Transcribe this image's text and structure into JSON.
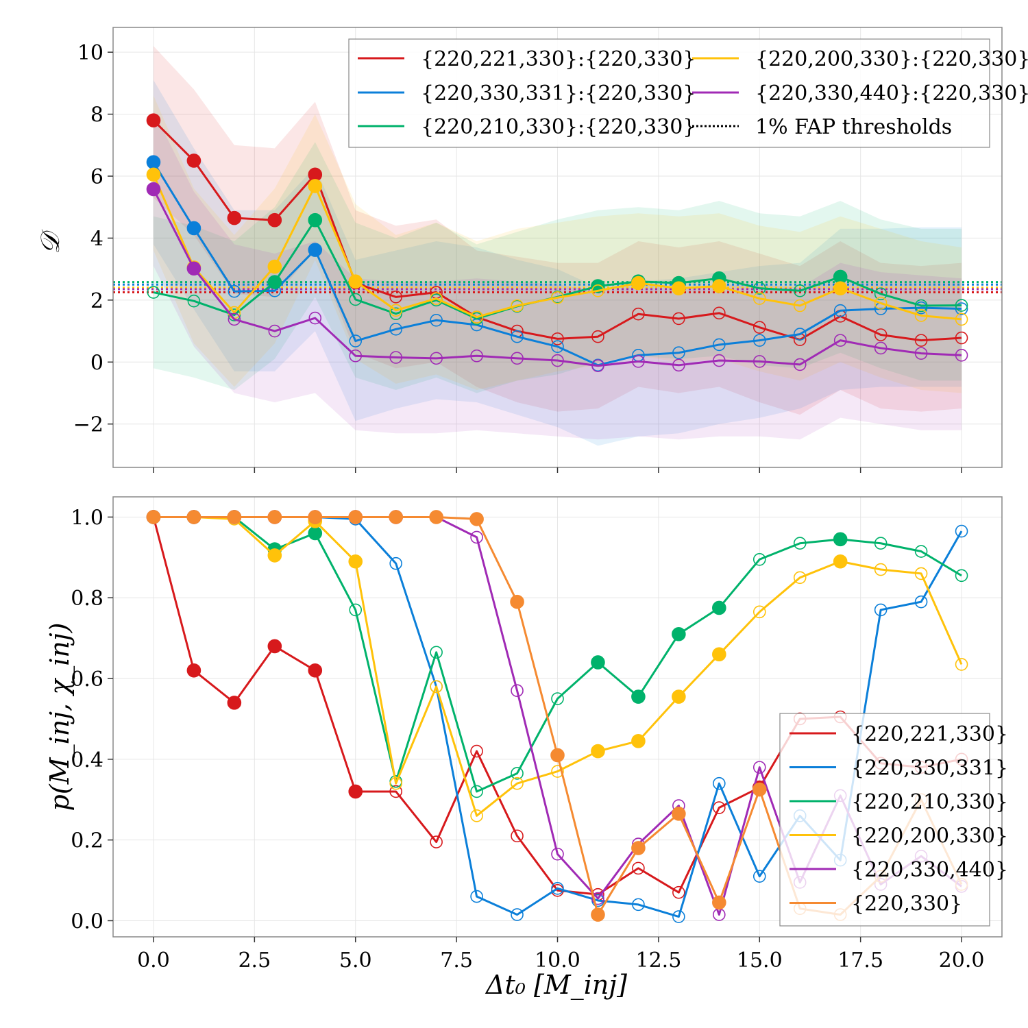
{
  "chart_data": [
    {
      "type": "line",
      "panel": "top",
      "ylabel": "𝒟",
      "xlabel": "",
      "xlim": [
        -1,
        21
      ],
      "ylim": [
        -3.4,
        10.8
      ],
      "x_ticks": [
        0.0,
        2.5,
        5.0,
        7.5,
        10.0,
        12.5,
        15.0,
        17.5,
        20.0
      ],
      "y_ticks": [
        -2,
        0,
        2,
        4,
        6,
        8,
        10
      ],
      "y_tick_labels": [
        "−2",
        "0",
        "2",
        "4",
        "6",
        "8",
        "10"
      ],
      "x_tick_labels_visible": false,
      "grid": true,
      "legend_placement": "top-right",
      "legend_columns": 2,
      "legend_entries": [
        "{220,221,330}:{220,330}",
        "{220,330,331}:{220,330}",
        "{220,210,330}:{220,330}",
        "{220,200,330}:{220,330}",
        "{220,330,440}:{220,330}",
        "1% FAP thresholds"
      ],
      "x": [
        0,
        1,
        2,
        3,
        4,
        5,
        6,
        7,
        8,
        9,
        10,
        11,
        12,
        13,
        14,
        15,
        16,
        17,
        18,
        19,
        20
      ],
      "series": [
        {
          "color": "#d7191c",
          "values": [
            7.8,
            6.5,
            4.65,
            4.58,
            6.05,
            2.55,
            2.1,
            2.25,
            1.45,
            1.0,
            0.75,
            0.82,
            1.55,
            1.4,
            1.58,
            1.12,
            0.72,
            1.48,
            0.88,
            0.7,
            0.78
          ],
          "filled": [
            true,
            true,
            true,
            true,
            true,
            false,
            false,
            false,
            false,
            false,
            false,
            false,
            false,
            false,
            false,
            false,
            false,
            false,
            false,
            false,
            false
          ],
          "band_upper": [
            10.2,
            8.8,
            7.0,
            6.9,
            8.4,
            4.9,
            4.4,
            4.6,
            3.6,
            3.4,
            3.2,
            3.2,
            3.9,
            3.7,
            3.9,
            3.5,
            3.1,
            3.9,
            3.2,
            3.1,
            3.2
          ],
          "band_lower": [
            5.3,
            4.1,
            2.2,
            2.1,
            3.6,
            0.3,
            -0.2,
            0.0,
            -0.8,
            -1.3,
            -1.6,
            -1.5,
            -0.8,
            -1.0,
            -0.8,
            -1.3,
            -1.7,
            -0.9,
            -1.5,
            -1.6,
            -1.5
          ],
          "threshold": 2.25
        },
        {
          "color": "#0b7fd9",
          "values": [
            6.45,
            4.32,
            2.28,
            2.3,
            3.62,
            0.68,
            1.06,
            1.35,
            1.2,
            0.82,
            0.5,
            -0.1,
            0.22,
            0.3,
            0.56,
            0.7,
            0.9,
            1.66,
            1.72,
            1.75,
            1.72
          ],
          "filled": [
            true,
            true,
            false,
            false,
            true,
            false,
            false,
            false,
            false,
            false,
            false,
            false,
            false,
            false,
            false,
            false,
            false,
            false,
            false,
            false,
            false
          ],
          "band_upper": [
            9.1,
            6.9,
            4.9,
            4.9,
            6.3,
            3.3,
            3.6,
            3.9,
            3.7,
            3.3,
            3.0,
            2.4,
            2.6,
            2.7,
            2.9,
            3.1,
            3.2,
            4.3,
            4.3,
            4.35,
            4.35
          ],
          "band_lower": [
            3.8,
            1.7,
            -0.3,
            -0.3,
            1.0,
            -1.9,
            -1.5,
            -1.2,
            -1.3,
            -1.7,
            -2.1,
            -2.7,
            -2.4,
            -2.3,
            -2.0,
            -1.8,
            -1.5,
            -0.9,
            -0.8,
            -0.8,
            -0.8
          ],
          "threshold": 2.5
        },
        {
          "color": "#00b26b",
          "values": [
            2.25,
            1.97,
            1.52,
            2.58,
            4.58,
            2.02,
            1.56,
            2.0,
            1.4,
            1.8,
            2.1,
            2.45,
            2.6,
            2.55,
            2.7,
            2.38,
            2.3,
            2.75,
            2.2,
            1.82,
            1.83
          ],
          "filled": [
            false,
            false,
            false,
            true,
            true,
            false,
            false,
            false,
            false,
            false,
            false,
            true,
            true,
            true,
            true,
            false,
            false,
            true,
            false,
            false,
            false
          ],
          "band_upper": [
            4.7,
            4.4,
            3.9,
            5.0,
            7.1,
            4.5,
            4.0,
            4.5,
            3.8,
            4.2,
            4.6,
            4.9,
            5.0,
            4.9,
            5.2,
            4.8,
            4.7,
            5.2,
            4.6,
            4.3,
            4.3
          ],
          "band_lower": [
            -0.2,
            -0.5,
            -0.9,
            0.1,
            2.1,
            -0.5,
            -0.9,
            -0.5,
            -1.0,
            -0.6,
            -0.4,
            0.0,
            0.2,
            0.1,
            0.2,
            -0.1,
            -0.2,
            0.3,
            -0.2,
            -0.6,
            -0.6
          ],
          "threshold": 2.58
        },
        {
          "color": "#ffc20a",
          "values": [
            6.05,
            3.05,
            1.6,
            3.08,
            5.68,
            2.6,
            1.67,
            2.05,
            1.45,
            1.82,
            2.08,
            2.3,
            2.55,
            2.38,
            2.45,
            2.05,
            1.82,
            2.38,
            1.9,
            1.5,
            1.38
          ],
          "filled": [
            true,
            true,
            false,
            true,
            true,
            true,
            false,
            false,
            false,
            false,
            false,
            false,
            true,
            true,
            true,
            false,
            false,
            true,
            false,
            false,
            false
          ],
          "band_upper": [
            8.6,
            5.6,
            4.1,
            5.6,
            8.0,
            5.1,
            4.1,
            4.5,
            3.9,
            4.3,
            4.5,
            4.7,
            4.8,
            4.7,
            4.8,
            4.4,
            4.2,
            4.7,
            4.3,
            3.9,
            3.7
          ],
          "band_lower": [
            3.6,
            0.6,
            -0.8,
            0.6,
            3.3,
            0.1,
            -0.7,
            -0.4,
            -0.9,
            -0.6,
            -0.3,
            -0.1,
            0.2,
            0.0,
            0.1,
            -0.3,
            -0.6,
            0.0,
            -0.5,
            -0.9,
            -1.0
          ],
          "threshold": 2.4
        },
        {
          "color": "#a02ab5",
          "values": [
            5.58,
            3.02,
            1.38,
            1.0,
            1.42,
            0.2,
            0.15,
            0.12,
            0.2,
            0.12,
            0.05,
            -0.12,
            0.02,
            -0.1,
            0.05,
            0.02,
            -0.08,
            0.7,
            0.45,
            0.28,
            0.22
          ],
          "filled": [
            true,
            true,
            false,
            false,
            false,
            false,
            false,
            false,
            false,
            false,
            false,
            false,
            false,
            false,
            false,
            false,
            false,
            false,
            false,
            false,
            false
          ],
          "band_upper": [
            8.1,
            5.5,
            3.8,
            3.5,
            3.9,
            2.7,
            2.6,
            2.6,
            2.7,
            2.6,
            2.5,
            2.3,
            2.5,
            2.4,
            2.5,
            2.5,
            2.4,
            3.2,
            2.9,
            2.8,
            2.7
          ],
          "band_lower": [
            3.1,
            0.5,
            -1.0,
            -1.3,
            -1.0,
            -2.2,
            -2.3,
            -2.3,
            -2.2,
            -2.3,
            -2.4,
            -2.5,
            -2.4,
            -2.5,
            -2.4,
            -2.4,
            -2.5,
            -1.8,
            -2.0,
            -2.2,
            -2.2
          ],
          "threshold": 2.35
        }
      ]
    },
    {
      "type": "line",
      "panel": "bottom",
      "ylabel": "p(M_inj, χ_inj)",
      "xlabel": "Δt₀ [M_inj]",
      "xlim": [
        -1,
        21
      ],
      "ylim": [
        -0.04,
        1.05
      ],
      "x_ticks": [
        0.0,
        2.5,
        5.0,
        7.5,
        10.0,
        12.5,
        15.0,
        17.5,
        20.0
      ],
      "x_tick_labels": [
        "0.0",
        "2.5",
        "5.0",
        "7.5",
        "10.0",
        "12.5",
        "15.0",
        "17.5",
        "20.0"
      ],
      "y_ticks": [
        0.0,
        0.2,
        0.4,
        0.6,
        0.8,
        1.0
      ],
      "y_tick_labels": [
        "0.0",
        "0.2",
        "0.4",
        "0.6",
        "0.8",
        "1.0"
      ],
      "grid": true,
      "legend_placement": "bottom-right",
      "legend_entries": [
        "{220,221,330}",
        "{220,330,331}",
        "{220,210,330}",
        "{220,200,330}",
        "{220,330,440}",
        "{220,330}"
      ],
      "x": [
        0,
        1,
        2,
        3,
        4,
        5,
        6,
        7,
        8,
        9,
        10,
        11,
        12,
        13,
        14,
        15,
        16,
        17,
        18,
        19,
        20
      ],
      "series": [
        {
          "color": "#d7191c",
          "values": [
            1.0,
            0.62,
            0.54,
            0.68,
            0.62,
            0.32,
            0.32,
            0.195,
            0.42,
            0.21,
            0.075,
            0.065,
            0.13,
            0.07,
            0.28,
            0.33,
            0.5,
            0.505,
            0.39,
            0.38,
            0.4
          ],
          "filled": [
            false,
            true,
            true,
            true,
            true,
            true,
            false,
            false,
            false,
            false,
            false,
            false,
            false,
            false,
            false,
            true,
            false,
            false,
            false,
            false,
            false
          ]
        },
        {
          "color": "#0b7fd9",
          "values": [
            1.0,
            1.0,
            1.0,
            1.0,
            1.0,
            0.995,
            0.885,
            0.58,
            0.06,
            0.015,
            0.08,
            0.05,
            0.04,
            0.01,
            0.34,
            0.11,
            0.26,
            0.15,
            0.77,
            0.79,
            0.965
          ],
          "filled": [
            false,
            false,
            false,
            false,
            false,
            false,
            false,
            false,
            false,
            false,
            false,
            false,
            false,
            false,
            false,
            false,
            false,
            false,
            false,
            false,
            false
          ]
        },
        {
          "color": "#00b26b",
          "values": [
            1.0,
            1.0,
            1.0,
            0.92,
            0.96,
            0.77,
            0.345,
            0.665,
            0.32,
            0.365,
            0.55,
            0.64,
            0.555,
            0.71,
            0.775,
            0.895,
            0.935,
            0.945,
            0.935,
            0.915,
            0.855
          ],
          "filled": [
            true,
            true,
            true,
            true,
            true,
            false,
            false,
            false,
            false,
            false,
            false,
            true,
            true,
            true,
            true,
            false,
            false,
            true,
            false,
            false,
            false
          ]
        },
        {
          "color": "#ffc20a",
          "values": [
            1.0,
            1.0,
            0.995,
            0.905,
            0.99,
            0.89,
            0.34,
            0.58,
            0.26,
            0.34,
            0.37,
            0.42,
            0.445,
            0.555,
            0.66,
            0.765,
            0.85,
            0.89,
            0.87,
            0.86,
            0.635
          ],
          "filled": [
            true,
            true,
            false,
            true,
            true,
            true,
            false,
            false,
            false,
            false,
            false,
            true,
            true,
            true,
            true,
            false,
            false,
            true,
            false,
            false,
            false
          ]
        },
        {
          "color": "#a02ab5",
          "values": [
            1.0,
            1.0,
            1.0,
            1.0,
            1.0,
            1.0,
            1.0,
            1.0,
            0.95,
            0.57,
            0.165,
            0.055,
            0.19,
            0.285,
            0.015,
            0.38,
            0.095,
            0.31,
            0.09,
            0.16,
            0.085
          ],
          "filled": [
            true,
            true,
            true,
            true,
            true,
            true,
            true,
            false,
            false,
            false,
            false,
            false,
            false,
            false,
            false,
            false,
            false,
            false,
            false,
            false,
            false
          ]
        },
        {
          "color": "#f58a31",
          "values": [
            1.0,
            1.0,
            1.0,
            1.0,
            1.0,
            1.0,
            1.0,
            1.0,
            0.995,
            0.79,
            0.41,
            0.015,
            0.18,
            0.265,
            0.045,
            0.325,
            0.03,
            0.015,
            0.11,
            0.3,
            0.09
          ],
          "filled": [
            true,
            true,
            true,
            true,
            true,
            true,
            true,
            true,
            true,
            true,
            true,
            true,
            true,
            true,
            true,
            true,
            false,
            false,
            false,
            false,
            false
          ]
        }
      ]
    }
  ]
}
